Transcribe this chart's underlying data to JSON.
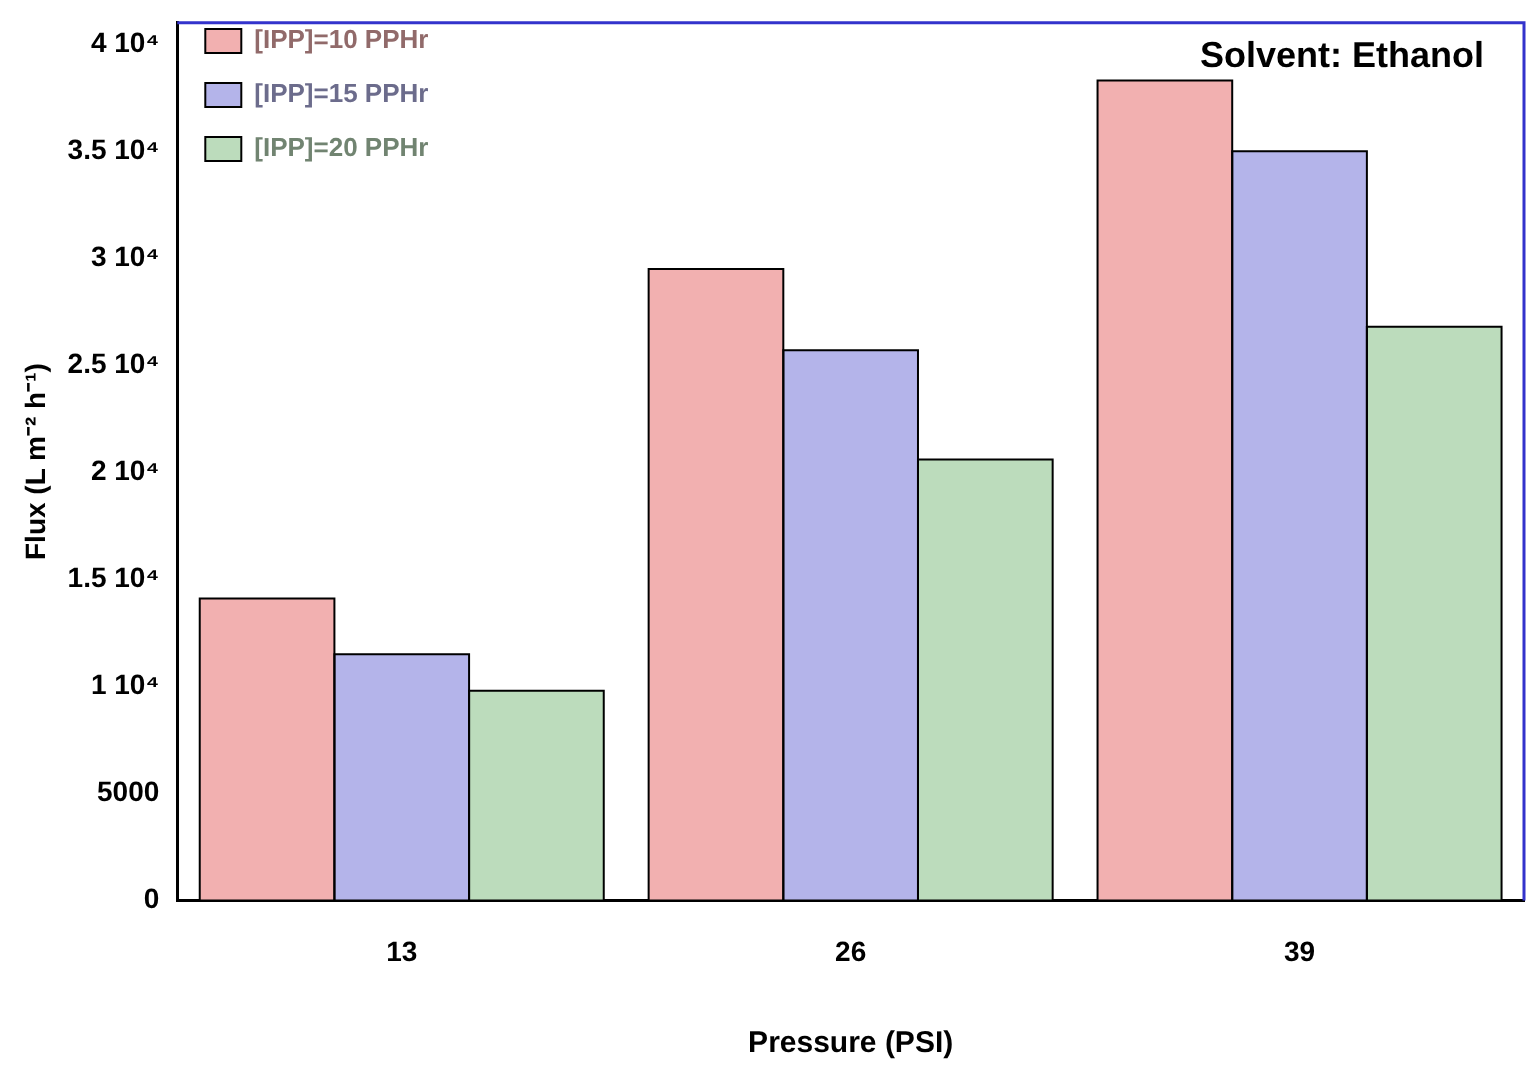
{
  "chart_data": {
    "type": "bar",
    "title": "Solvent: Ethanol",
    "xlabel": "Pressure (PSI)",
    "ylabel": "Flux (L m⁻² h⁻¹)",
    "categories": [
      "13",
      "26",
      "39"
    ],
    "series": [
      {
        "name": "[IPP]=10 PPHr",
        "color": "#f2b0b0",
        "values": [
          14100,
          29500,
          38300
        ]
      },
      {
        "name": "[IPP]=15 PPHr",
        "color": "#b4b4ea",
        "values": [
          11500,
          25700,
          35000
        ]
      },
      {
        "name": "[IPP]=20 PPHr",
        "color": "#bcdcbc",
        "values": [
          9800,
          20600,
          26800
        ]
      }
    ],
    "ylim": [
      0,
      41000
    ],
    "yticks": [
      0,
      5000,
      {
        "value": 10000,
        "label": "1 10⁴"
      },
      {
        "value": 15000,
        "label": "1.5 10⁴"
      },
      {
        "value": 20000,
        "label": "2 10⁴"
      },
      {
        "value": 25000,
        "label": "2.5 10⁴"
      },
      {
        "value": 30000,
        "label": "3 10⁴"
      },
      {
        "value": 35000,
        "label": "3.5 10⁴"
      },
      {
        "value": 40000,
        "label": "4 10⁴"
      }
    ],
    "grid": false,
    "legend": "top left"
  }
}
